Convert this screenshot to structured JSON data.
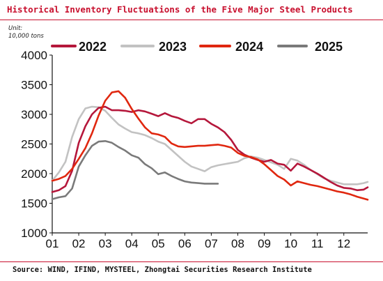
{
  "header": {
    "title": "Historical Inventory Fluctuations of the Five Major Steel Products",
    "unit_line1": "Unit:",
    "unit_line2": "10,000 tons"
  },
  "footer": {
    "source": "Source: WIND, IFIND, MYSTEEL, Zhongtai Securities Research Institute"
  },
  "colors": {
    "accent": "#c8102e",
    "s2022": "#b5173b",
    "s2023": "#c2c2c2",
    "s2024": "#e0270f",
    "s2025": "#7a7a7a"
  },
  "chart_data": {
    "type": "line",
    "title": "Historical Inventory Fluctuations of the Five Major Steel Products",
    "xlabel": "",
    "ylabel": "Unit: 10,000 tons",
    "xlim": [
      1,
      12.9
    ],
    "ylim": [
      1000,
      4000
    ],
    "y_ticks": [
      1000,
      1500,
      2000,
      2500,
      3000,
      3500,
      4000
    ],
    "x_ticks": [
      1,
      2,
      3,
      4,
      5,
      6,
      7,
      8,
      9,
      10,
      11,
      12
    ],
    "x_tick_labels": [
      "01",
      "02",
      "03",
      "04",
      "05",
      "06",
      "07",
      "08",
      "09",
      "10",
      "11",
      "12"
    ],
    "grid": false,
    "legend_position": "top",
    "series": [
      {
        "name": "2022",
        "color_key": "s2022",
        "x": [
          1.0,
          1.25,
          1.5,
          1.75,
          2.0,
          2.25,
          2.5,
          2.75,
          3.0,
          3.25,
          3.5,
          3.75,
          4.0,
          4.25,
          4.5,
          4.75,
          5.0,
          5.25,
          5.5,
          5.75,
          6.0,
          6.25,
          6.5,
          6.75,
          7.0,
          7.25,
          7.5,
          7.75,
          8.0,
          8.25,
          8.5,
          8.75,
          9.0,
          9.25,
          9.5,
          9.75,
          10.0,
          10.25,
          10.5,
          10.75,
          11.0,
          11.25,
          11.5,
          11.75,
          12.0,
          12.25,
          12.5,
          12.75,
          12.9
        ],
        "y": [
          1690,
          1720,
          1790,
          2050,
          2520,
          2800,
          3000,
          3110,
          3130,
          3070,
          3070,
          3060,
          3040,
          3070,
          3050,
          3010,
          2970,
          3020,
          2970,
          2940,
          2890,
          2850,
          2920,
          2920,
          2840,
          2780,
          2700,
          2570,
          2400,
          2320,
          2270,
          2230,
          2200,
          2230,
          2170,
          2150,
          2050,
          2170,
          2120,
          2060,
          2000,
          1930,
          1860,
          1800,
          1760,
          1750,
          1720,
          1730,
          1770
        ]
      },
      {
        "name": "2023",
        "color_key": "s2023",
        "x": [
          1.0,
          1.25,
          1.5,
          1.75,
          2.0,
          2.25,
          2.5,
          2.75,
          3.0,
          3.25,
          3.5,
          3.75,
          4.0,
          4.25,
          4.5,
          4.75,
          5.0,
          5.25,
          5.5,
          5.75,
          6.0,
          6.25,
          6.5,
          6.75,
          7.0,
          7.25,
          7.5,
          7.75,
          8.0,
          8.25,
          8.5,
          8.75,
          9.0,
          9.25,
          9.5,
          9.75,
          10.0,
          10.25,
          10.5,
          10.75,
          11.0,
          11.25,
          11.5,
          11.75,
          12.0,
          12.25,
          12.5,
          12.75,
          12.9
        ],
        "y": [
          1880,
          2020,
          2200,
          2620,
          2920,
          3100,
          3130,
          3120,
          3060,
          2940,
          2830,
          2760,
          2700,
          2680,
          2650,
          2600,
          2540,
          2500,
          2400,
          2300,
          2200,
          2120,
          2080,
          2040,
          2110,
          2140,
          2160,
          2180,
          2200,
          2260,
          2290,
          2270,
          2230,
          2190,
          2150,
          2080,
          2250,
          2220,
          2150,
          2060,
          1990,
          1920,
          1880,
          1850,
          1820,
          1820,
          1820,
          1840,
          1860
        ]
      },
      {
        "name": "2024",
        "color_key": "s2024",
        "x": [
          1.0,
          1.25,
          1.5,
          1.75,
          2.0,
          2.25,
          2.5,
          2.75,
          3.0,
          3.25,
          3.5,
          3.75,
          4.0,
          4.25,
          4.5,
          4.75,
          5.0,
          5.25,
          5.5,
          5.75,
          6.0,
          6.25,
          6.5,
          6.75,
          7.0,
          7.25,
          7.5,
          7.75,
          8.0,
          8.25,
          8.5,
          8.75,
          9.0,
          9.25,
          9.5,
          9.75,
          10.0,
          10.25,
          10.5,
          10.75,
          11.0,
          11.25,
          11.5,
          11.75,
          12.0,
          12.25,
          12.5,
          12.75,
          12.9
        ],
        "y": [
          1880,
          1910,
          1960,
          2080,
          2250,
          2430,
          2680,
          2980,
          3230,
          3370,
          3390,
          3280,
          3090,
          2930,
          2780,
          2680,
          2660,
          2620,
          2510,
          2460,
          2450,
          2460,
          2470,
          2470,
          2480,
          2490,
          2470,
          2440,
          2350,
          2300,
          2280,
          2240,
          2160,
          2060,
          1960,
          1900,
          1800,
          1870,
          1840,
          1810,
          1790,
          1760,
          1730,
          1700,
          1680,
          1650,
          1610,
          1580,
          1560
        ]
      },
      {
        "name": "2025",
        "color_key": "s2025",
        "x": [
          1.0,
          1.25,
          1.5,
          1.75,
          2.0,
          2.25,
          2.5,
          2.75,
          3.0,
          3.25,
          3.5,
          3.75,
          4.0,
          4.25,
          4.5,
          4.75,
          5.0,
          5.25,
          5.5,
          5.75,
          6.0,
          6.25,
          6.5,
          6.75,
          7.0,
          7.25
        ],
        "y": [
          1570,
          1600,
          1620,
          1750,
          2120,
          2310,
          2470,
          2540,
          2550,
          2520,
          2450,
          2390,
          2310,
          2270,
          2160,
          2090,
          1990,
          2020,
          1960,
          1910,
          1870,
          1850,
          1840,
          1830,
          1830,
          1830
        ]
      }
    ]
  }
}
